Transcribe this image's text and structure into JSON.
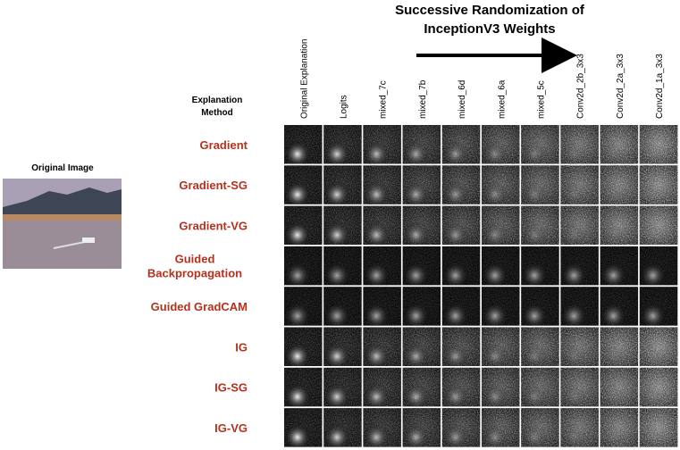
{
  "title_lines": [
    "Successive Randomization of",
    "InceptionV3 Weights"
  ],
  "columns": [
    "Original Explanation",
    "Logits",
    "mixed_7c",
    "mixed_7b",
    "mixed_6d",
    "mixed_6a",
    "mixed_5c",
    "Conv2d_2b_3x3",
    "Conv2d_2a_3x3",
    "Conv2d_1a_3x3"
  ],
  "row_header": [
    "Explanation",
    "Method"
  ],
  "rows": [
    [
      "Gradient"
    ],
    [
      "Gradient-SG"
    ],
    [
      "Gradient-VG"
    ],
    [
      "Guided",
      "Backpropagation"
    ],
    [
      "Guided GradCAM"
    ],
    [
      "IG"
    ],
    [
      "IG-SG"
    ],
    [
      "IG-VG"
    ]
  ],
  "original_image_label": "Original Image"
}
